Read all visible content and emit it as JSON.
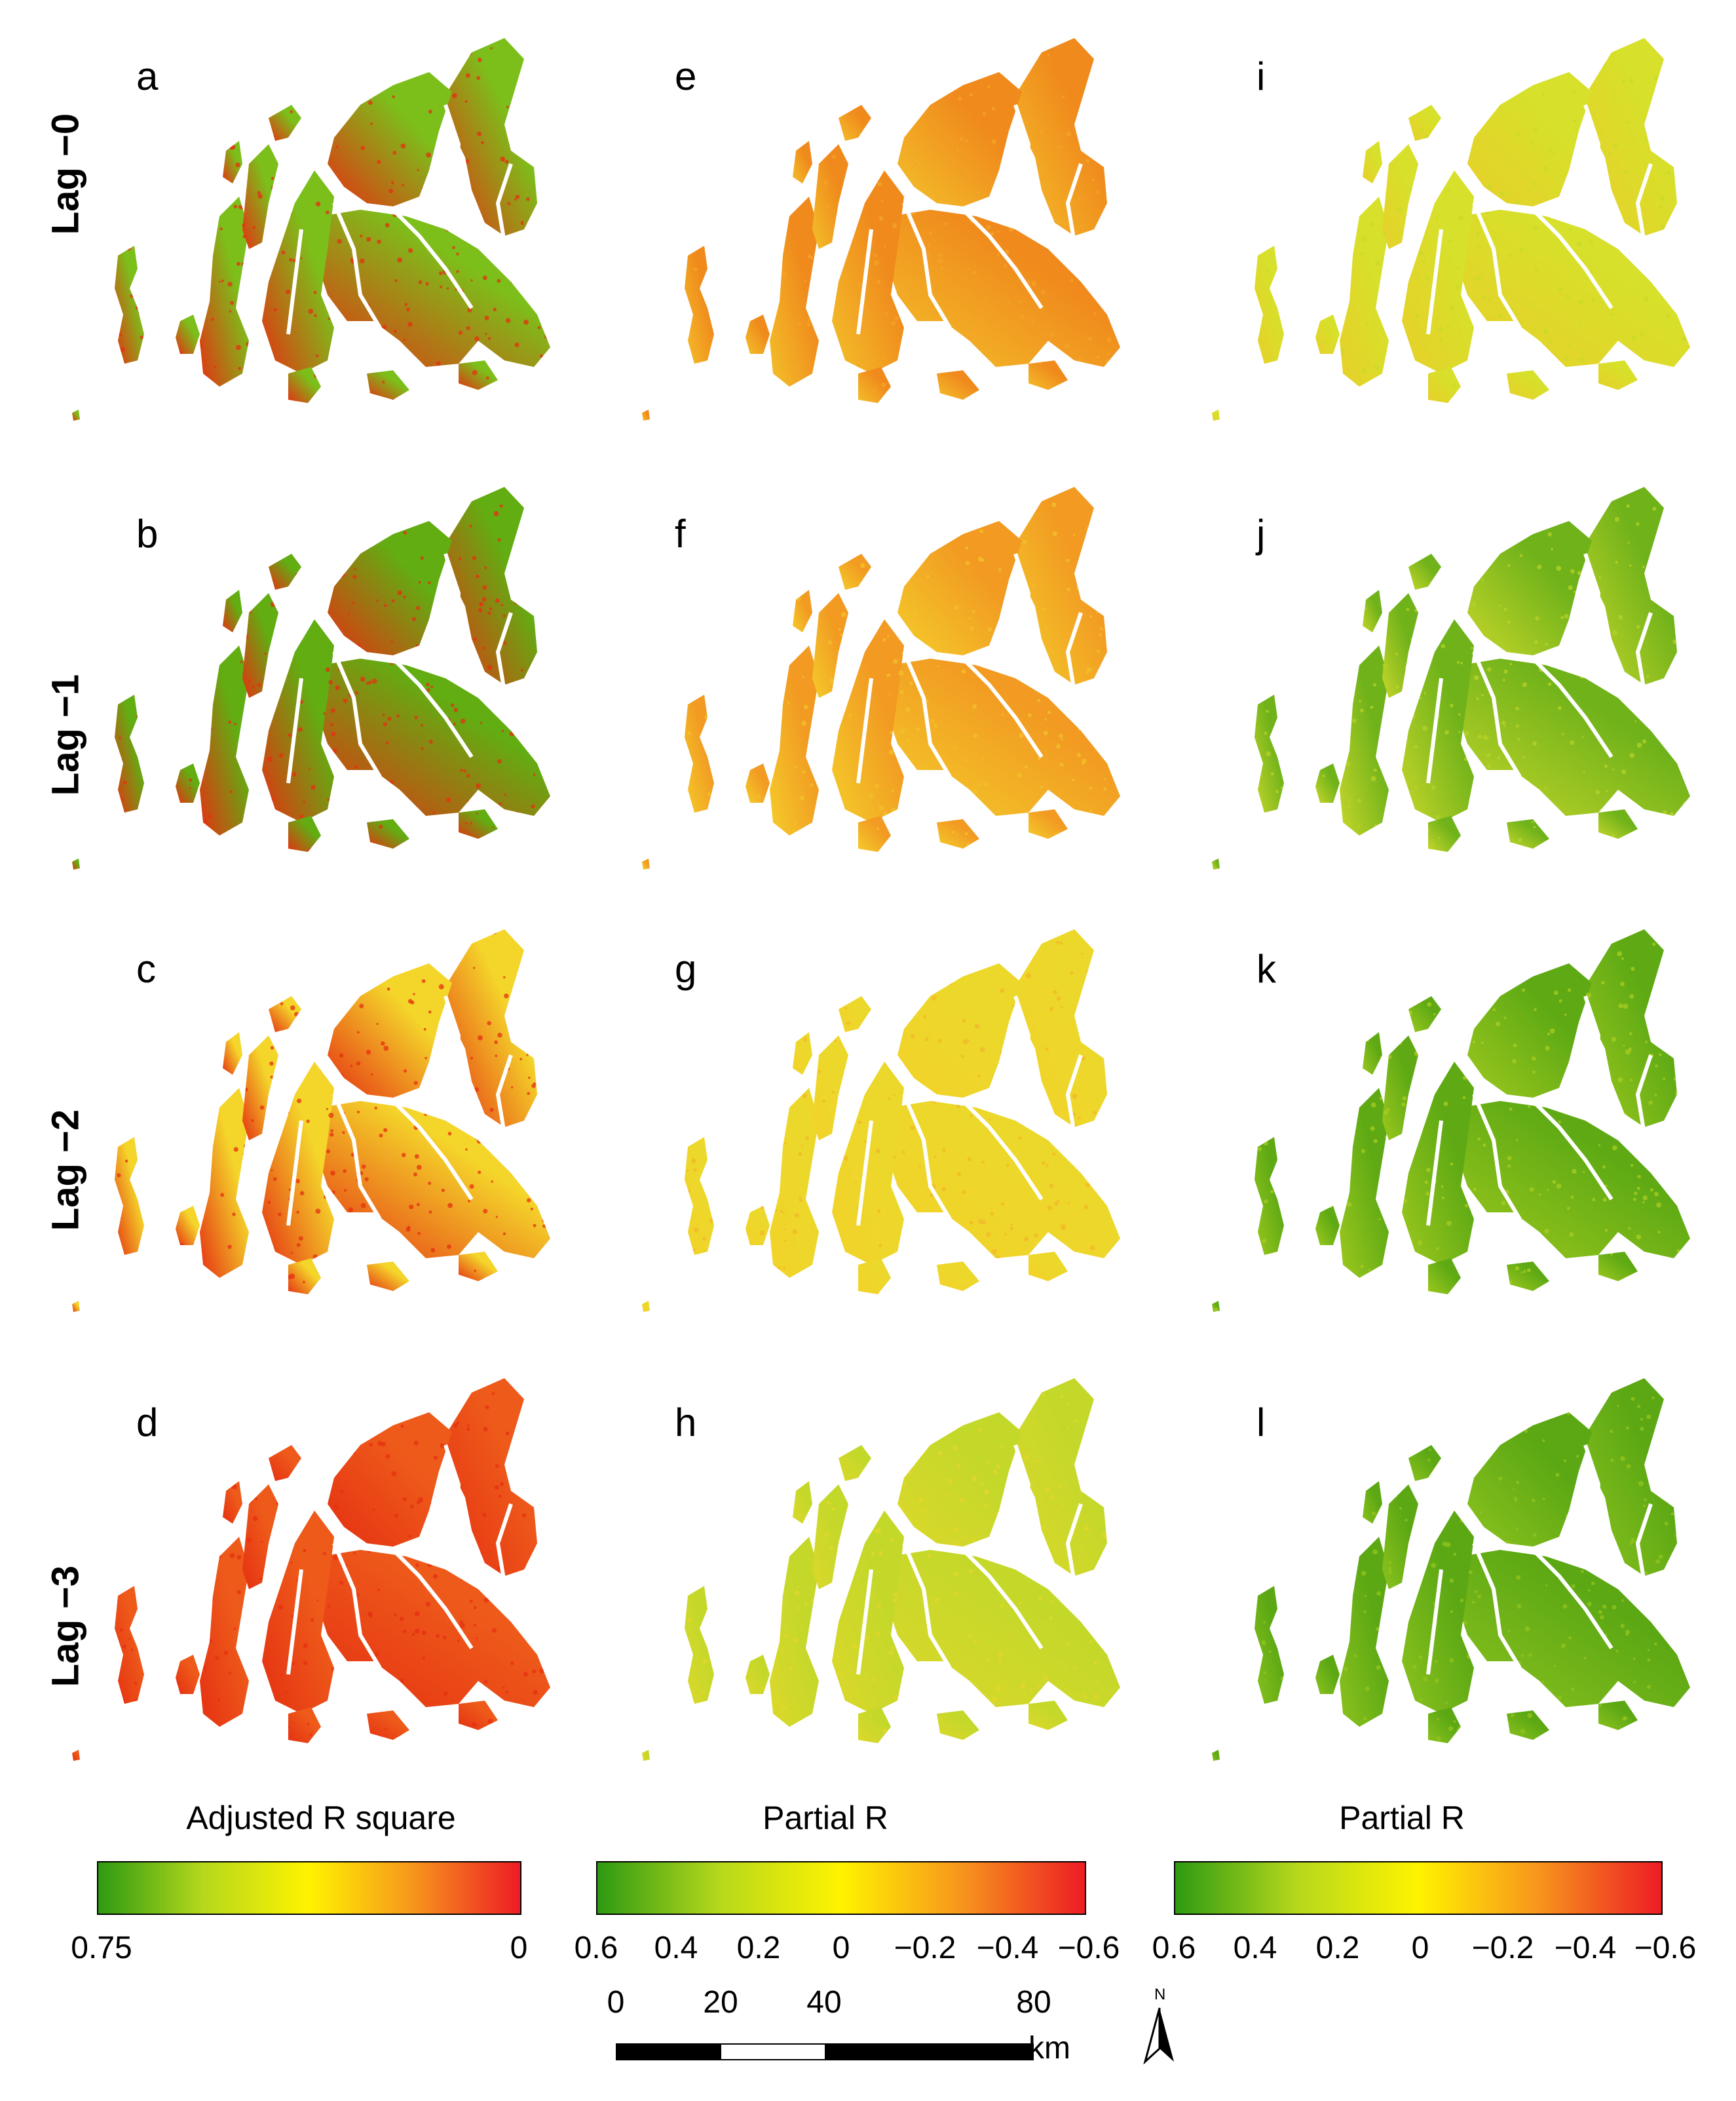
{
  "rows": [
    {
      "label": "Lag −0",
      "panels": [
        "a",
        "e",
        "i"
      ],
      "tones": [
        "#7cbf1a",
        "#f08a1c",
        "#d7e02a"
      ],
      "speckle": [
        "#e53012",
        "#f3a326",
        "#c9d92a"
      ],
      "edge": [
        "#e53012",
        "#f3c02a",
        "#e8cf2a"
      ]
    },
    {
      "label": "Lag −1",
      "panels": [
        "b",
        "f",
        "j"
      ],
      "tones": [
        "#62ad12",
        "#f29a22",
        "#6fb21a"
      ],
      "speckle": [
        "#e53012",
        "#f2c229",
        "#b6d228"
      ],
      "edge": [
        "#e53012",
        "#f4cc2a",
        "#c6d62a"
      ]
    },
    {
      "label": "Lag −2",
      "panels": [
        "c",
        "g",
        "k"
      ],
      "tones": [
        "#f4d52a",
        "#ecd82a",
        "#5faa14"
      ],
      "speckle": [
        "#e53012",
        "#f2b82a",
        "#a9cc22"
      ],
      "edge": [
        "#e53012",
        "#f2d22a",
        "#9dc81e"
      ]
    },
    {
      "label": "Lag −3",
      "panels": [
        "d",
        "h",
        "l"
      ],
      "tones": [
        "#ee5a1a",
        "#c4d82a",
        "#5ca814"
      ],
      "speckle": [
        "#e53012",
        "#e4d72a",
        "#93c41e"
      ],
      "edge": [
        "#e53012",
        "#dcd82a",
        "#8cc21e"
      ]
    }
  ],
  "legends": [
    {
      "title": "Adjusted R square",
      "ticks": [
        "0.75",
        "0"
      ]
    },
    {
      "title": "Partial R",
      "ticks": [
        "0.6",
        "0.4",
        "0.2",
        "0",
        "−0.2",
        "−0.4",
        "−0.6"
      ]
    },
    {
      "title": "Partial R",
      "ticks": [
        "0.6",
        "0.4",
        "0.2",
        "0",
        "−0.2",
        "−0.4",
        "−0.6"
      ]
    }
  ],
  "colormap": [
    "#2e9a12",
    "#b6d81c",
    "#fff300",
    "#f7941d",
    "#ed1c24"
  ],
  "scale": {
    "labels": [
      "0",
      "20",
      "40",
      "80"
    ],
    "unit": "km"
  },
  "north": "N"
}
